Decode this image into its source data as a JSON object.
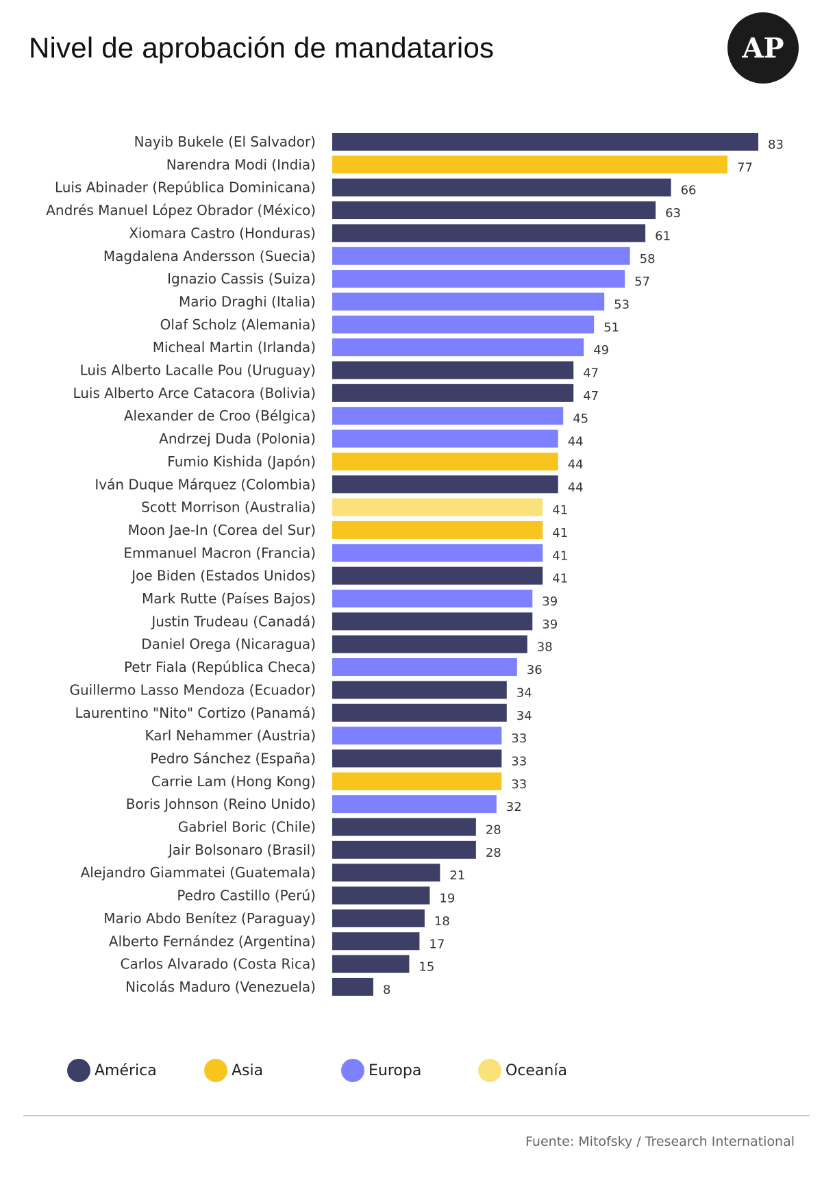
{
  "header": {
    "title": "Nivel de aprobación de mandatarios",
    "logo_text": "AP"
  },
  "colors": {
    "America": "#3d3f66",
    "Asia": "#f7c51e",
    "Europa": "#7d80ff",
    "Oceania": "#fbe17a"
  },
  "chart_data": {
    "type": "bar",
    "orientation": "horizontal",
    "title": "Nivel de aprobación de mandatarios",
    "xlim": [
      0,
      83
    ],
    "grid": false,
    "legend_position": "bottom",
    "categories": [
      "Nayib Bukele (El Salvador)",
      "Narendra Modi (India)",
      "Luis Abinader (República Dominicana)",
      "Andrés Manuel López Obrador (México)",
      "Xiomara Castro (Honduras)",
      "Magdalena Andersson (Suecia)",
      "Ignazio Cassis (Suiza)",
      "Mario Draghi (Italia)",
      "Olaf Scholz (Alemania)",
      "Micheal Martin (Irlanda)",
      "Luis Alberto Lacalle Pou (Uruguay)",
      "Luis Alberto Arce Catacora (Bolivia)",
      "Alexander de Croo (Bélgica)",
      "Andrzej Duda (Polonia)",
      "Fumio Kishida (Japón)",
      "Iván Duque Márquez (Colombia)",
      "Scott Morrison (Australia)",
      "Moon Jae-In (Corea del Sur)",
      "Emmanuel Macron (Francia)",
      "Joe Biden (Estados Unidos)",
      "Mark Rutte (Países Bajos)",
      "Justin Trudeau (Canadá)",
      "Daniel Orega (Nicaragua)",
      "Petr Fiala (República Checa)",
      "Guillermo Lasso Mendoza (Ecuador)",
      "Laurentino \"Nito\" Cortizo (Panamá)",
      "Karl Nehammer (Austria)",
      "Pedro Sánchez (España)",
      "Carrie Lam (Hong Kong)",
      "Boris Johnson (Reino Unido)",
      "Gabriel Boric (Chile)",
      "Jair Bolsonaro (Brasil)",
      "Alejandro Giammatei (Guatemala)",
      "Pedro Castillo (Perú)",
      "Mario Abdo Benítez (Paraguay)",
      "Alberto Fernández (Argentina)",
      "Carlos Alvarado (Costa Rica)",
      "Nicolás Maduro (Venezuela)"
    ],
    "values": [
      83,
      77,
      66,
      63,
      61,
      58,
      57,
      53,
      51,
      49,
      47,
      47,
      45,
      44,
      44,
      44,
      41,
      41,
      41,
      41,
      39,
      39,
      38,
      36,
      34,
      34,
      33,
      33,
      33,
      32,
      28,
      28,
      21,
      19,
      18,
      17,
      15,
      8
    ],
    "regions": [
      "América",
      "Asia",
      "América",
      "América",
      "América",
      "Europa",
      "Europa",
      "Europa",
      "Europa",
      "Europa",
      "América",
      "América",
      "Europa",
      "Europa",
      "Asia",
      "América",
      "Oceanía",
      "Asia",
      "Europa",
      "América",
      "Europa",
      "América",
      "América",
      "Europa",
      "América",
      "América",
      "Europa",
      "América",
      "Asia",
      "Europa",
      "América",
      "América",
      "América",
      "América",
      "America",
      "América",
      "América",
      "América"
    ],
    "legend": [
      {
        "label": "América",
        "color": "#3d3f66"
      },
      {
        "label": "Asia",
        "color": "#f7c51e"
      },
      {
        "label": "Europa",
        "color": "#7d80ff"
      },
      {
        "label": "Oceanía",
        "color": "#fbe17a"
      }
    ]
  },
  "footer": {
    "source": "Fuente: Mitofsky / Tresearch International"
  }
}
